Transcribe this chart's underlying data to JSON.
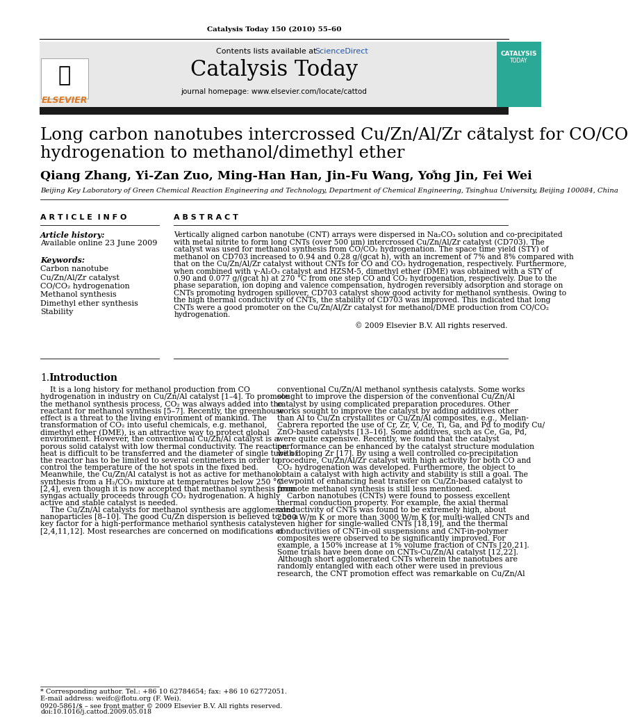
{
  "journal_ref": "Catalysis Today 150 (2010) 55–60",
  "journal_name": "Catalysis Today",
  "journal_url": "journal homepage: www.elsevier.com/locate/cattod",
  "contents_line": "Contents lists available at ScienceDirect",
  "title_line1": "Long carbon nanotubes intercrossed Cu/Zn/Al/Zr catalyst for CO/CO",
  "title_sub2": "2",
  "title_line2": "hydrogenation to methanol/dimethyl ether",
  "authors": "Qiang Zhang, Yi-Zan Zuo, Ming-Han Han, Jin-Fu Wang, Yong Jin, Fei Wei",
  "authors_star": "*",
  "affiliation": "Beijing Key Laboratory of Green Chemical Reaction Engineering and Technology, Department of Chemical Engineering, Tsinghua University, Beijing 100084, China",
  "article_info_header": "A R T I C L E  I N F O",
  "article_history_label": "Article history:",
  "article_history_value": "Available online 23 June 2009",
  "keywords_label": "Keywords:",
  "keywords": [
    "Carbon nanotube",
    "Cu/Zn/Al/Zr catalyst",
    "CO/CO₂ hydrogenation",
    "Methanol synthesis",
    "Dimethyl ether synthesis",
    "Stability"
  ],
  "abstract_header": "A B S T R A C T",
  "copyright": "© 2009 Elsevier B.V. All rights reserved.",
  "footnote_star": "* Corresponding author. Tel.: +86 10 62784654; fax: +86 10 62772051.",
  "footnote_email": "E-mail address: weifc@flotu.org (F. Wei).",
  "footer_issn": "0920-5861/$ – see front matter © 2009 Elsevier B.V. All rights reserved.",
  "footer_doi": "doi:10.1016/j.cattod.2009.05.018",
  "header_bar_color": "#1a1a1a",
  "bg_header_color": "#e8e8e8",
  "elsevier_color": "#e07820",
  "blue_link_color": "#2255aa",
  "cover_color": "#2aaa96",
  "abstract_lines": [
    "Vertically aligned carbon nanotube (CNT) arrays were dispersed in Na₂CO₃ solution and co-precipitated",
    "with metal nitrite to form long CNTs (over 500 μm) intercrossed Cu/Zn/Al/Zr catalyst (CD703). The",
    "catalyst was used for methanol synthesis from CO/CO₂ hydrogenation. The space time yield (STY) of",
    "methanol on CD703 increased to 0.94 and 0.28 g/(gcat h), with an increment of 7% and 8% compared with",
    "that on the Cu/Zn/Al/Zr catalyst without CNTs for CO and CO₂ hydrogenation, respectively. Furthermore,",
    "when combined with γ-Al₂O₃ catalyst and HZSM-5, dimethyl ether (DME) was obtained with a STY of",
    "0.90 and 0.077 g/(gcat h) at 270 °C from one step CO and CO₂ hydrogenation, respectively. Due to the",
    "phase separation, ion doping and valence compensation, hydrogen reversibly adsorption and storage on",
    "CNTs promoting hydrogen spillover, CD703 catalyst show good activity for methanol synthesis. Owing to",
    "the high thermal conductivity of CNTs, the stability of CD703 was improved. This indicated that long",
    "CNTs were a good promoter on the Cu/Zn/Al/Zr catalyst for methanol/DME production from CO/CO₂",
    "hydrogenation."
  ],
  "col1_lines": [
    "    It is a long history for methanol production from CO",
    "hydrogenation in industry on Cu/Zn/Al catalyst [1–4]. To promote",
    "the methanol synthesis process, CO₂ was always added into the",
    "reactant for methanol synthesis [5–7]. Recently, the greenhouse",
    "effect is a threat to the living environment of mankind. The",
    "transformation of CO₂ into useful chemicals, e.g. methanol,",
    "dimethyl ether (DME), is an attractive way to protect global",
    "environment. However, the conventional Cu/Zn/Al catalyst is a",
    "porous solid catalyst with low thermal conductivity. The reaction",
    "heat is difficult to be transferred and the diameter of single tube of",
    "the reactor has to be limited to several centimeters in order to",
    "control the temperature of the hot spots in the fixed bed.",
    "Meanwhile, the Cu/Zn/Al catalyst is not as active for methanol",
    "synthesis from a H₂/CO₂ mixture at temperatures below 250 °C",
    "[2,4], even though it is now accepted that methanol synthesis from",
    "syngas actually proceeds through CO₂ hydrogenation. A highly",
    "active and stable catalyst is needed.",
    "    The Cu/Zn/Al catalysts for methanol synthesis are agglomerated",
    "nanoparticles [8–10]. The good Cu/Zn dispersion is believed to be a",
    "key factor for a high-performance methanol synthesis catalyst",
    "[2,4,11,12]. Most researches are concerned on modifications of"
  ],
  "col2_lines": [
    "conventional Cu/Zn/Al methanol synthesis catalysts. Some works",
    "sought to improve the dispersion of the conventional Cu/Zn/Al",
    "catalyst by using complicated preparation procedures. Other",
    "works sought to improve the catalyst by adding additives other",
    "than Al to Cu/Zn crystallites or Cu/Zn/Al composites, e.g., Melian-",
    "Cabrera reported the use of Cr, Zr, V, Ce, Ti, Ga, and Pd to modify Cu/",
    "ZnO-based catalysts [13–16]. Some additives, such as Ce, Ga, Pd,",
    "were quite expensive. Recently, we found that the catalyst",
    "performance can be enhanced by the catalyst structure modulation",
    "with doping Zr [17]. By using a well controlled co-precipitation",
    "procedure, Cu/Zn/Al/Zr catalyst with high activity for both CO and",
    "CO₂ hydrogenation was developed. Furthermore, the object to",
    "obtain a catalyst with high activity and stability is still a goal. The",
    "viewpoint of enhancing heat transfer on Cu/Zn-based catalyst to",
    "promote methanol synthesis is still less mentioned.",
    "    Carbon nanotubes (CNTs) were found to possess excellent",
    "thermal conduction property. For example, the axial thermal",
    "conductivity of CNTs was found to be extremely high, about",
    "2000 W/m K or more than 3000 W/m K for multi-walled CNTs and",
    "even higher for single-walled CNTs [18,19], and the thermal",
    "conductivities of CNT-in-oil suspensions and CNT-in-polymer",
    "composites were observed to be significantly improved. For",
    "example, a 150% increase at 1% volume fraction of CNTs [20,21].",
    "Some trials have been done on CNTs-Cu/Zn/Al catalyst [12,22].",
    "Although short agglomerated CNTs wherein the nanotubes are",
    "randomly entangled with each other were used in previous",
    "research, the CNT promotion effect was remarkable on Cu/Zn/Al"
  ]
}
